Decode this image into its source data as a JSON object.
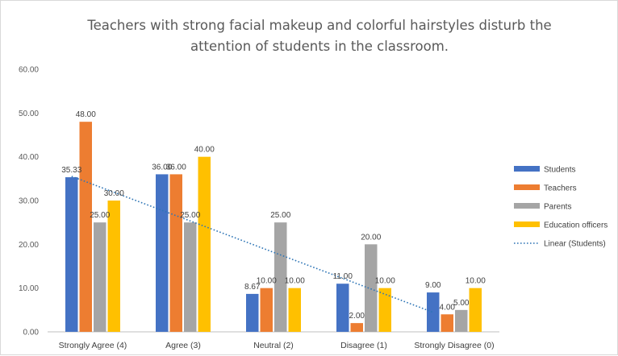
{
  "chart_data": {
    "type": "bar",
    "title_lines": [
      "Teachers with strong facial makeup and colorful hairstyles disturb the",
      "attention of students in the classroom."
    ],
    "categories": [
      "Strongly Agree (4)",
      "Agree (3)",
      "Neutral (2)",
      "Disagree (1)",
      "Strongly Disagree (0)"
    ],
    "series": [
      {
        "name": "Students",
        "color": "#4472C4",
        "values": [
          35.33,
          36.0,
          8.67,
          11.0,
          9.0
        ],
        "labels": [
          "35.33",
          "36.00",
          "8.67",
          "11.00",
          "9.00"
        ]
      },
      {
        "name": "Teachers",
        "color": "#ED7D31",
        "values": [
          48.0,
          36.0,
          10.0,
          2.0,
          4.0
        ],
        "labels": [
          "48.00",
          "36.00",
          "10.00",
          "2.00",
          "4.00"
        ]
      },
      {
        "name": "Parents",
        "color": "#A5A5A5",
        "values": [
          25.0,
          25.0,
          25.0,
          20.0,
          5.0
        ],
        "labels": [
          "25.00",
          "25.00",
          "25.00",
          "20.00",
          "5.00"
        ]
      },
      {
        "name": "Education officers",
        "color": "#FFC000",
        "values": [
          30.0,
          40.0,
          10.0,
          10.0,
          10.0
        ],
        "labels": [
          "30.00",
          "40.00",
          "10.00",
          "10.00",
          "10.00"
        ]
      }
    ],
    "trendline": {
      "name": "Linear (Students)",
      "of_series": "Students",
      "color": "#2E75B6",
      "style": "dotted"
    },
    "ylim": [
      0,
      60
    ],
    "yticks": [
      "0.00",
      "10.00",
      "20.00",
      "30.00",
      "40.00",
      "50.00",
      "60.00"
    ],
    "xlabel": "",
    "ylabel": "",
    "grid": false,
    "legend_position": "right"
  }
}
